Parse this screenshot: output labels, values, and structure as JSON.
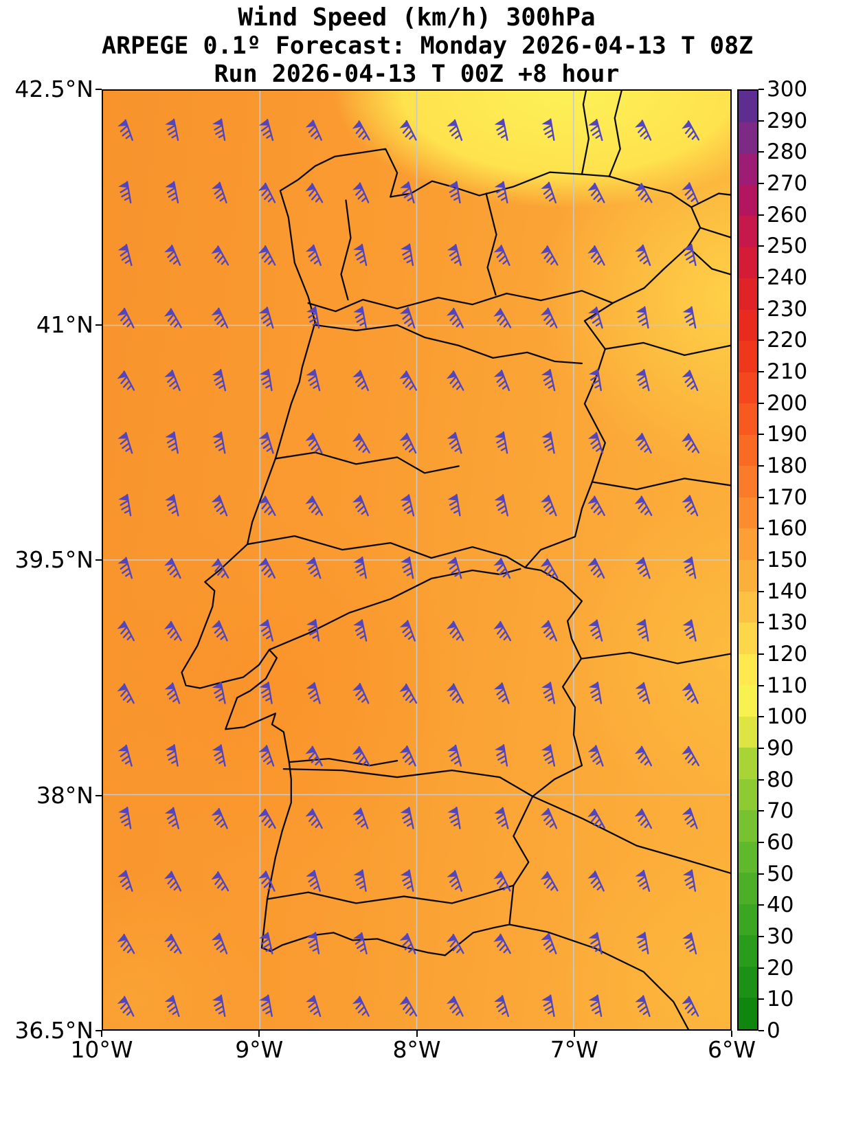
{
  "figure": {
    "title": "Wind Speed (km/h) 300hPa",
    "subtitle": "ARPEGE 0.1º Forecast: Monday 2026-04-13 T 08Z",
    "run_line": "Run 2026-04-13 T 00Z +8 hour"
  },
  "chart_data": {
    "type": "heatmap",
    "variable": "Wind Speed",
    "units": "km/h",
    "pressure_level": "300hPa",
    "model": "ARPEGE 0.1º",
    "valid": "Monday 2026-04-13 T 08Z",
    "run": "2026-04-13 T 00Z",
    "lead": "+8 hour",
    "region": "Portugal and western Iberia",
    "x_axis": {
      "range_lon": [
        -10,
        -6
      ],
      "ticks": [
        {
          "label": "10°W",
          "lon": -10
        },
        {
          "label": "9°W",
          "lon": -9
        },
        {
          "label": "8°W",
          "lon": -8
        },
        {
          "label": "7°W",
          "lon": -7
        },
        {
          "label": "6°W",
          "lon": -6
        }
      ]
    },
    "y_axis": {
      "range_lat": [
        42.5,
        36.5
      ],
      "ticks": [
        {
          "label": "42.5°N",
          "lat": 42.5
        },
        {
          "label": "41°N",
          "lat": 41
        },
        {
          "label": "39.5°N",
          "lat": 39.5
        },
        {
          "label": "38°N",
          "lat": 38
        },
        {
          "label": "36.5°N",
          "lat": 36.5
        }
      ]
    },
    "grid": {
      "shown": true,
      "color": "#c9c9c9",
      "lon_lines": [
        -9,
        -8,
        -7
      ],
      "lat_lines": [
        41,
        39.5,
        38
      ]
    },
    "colorbar": {
      "min": 0,
      "max": 300,
      "tick_step": 10,
      "units": "km/h",
      "tick_labels_bottom_up": [
        "0",
        "10",
        "20",
        "30",
        "40",
        "50",
        "60",
        "70",
        "80",
        "90",
        "100",
        "110",
        "120",
        "130",
        "140",
        "150",
        "160",
        "170",
        "180",
        "190",
        "200",
        "210",
        "220",
        "230",
        "240",
        "250",
        "260",
        "270",
        "280",
        "290",
        "300"
      ],
      "segment_colors_bottom_up": [
        "#0f870f",
        "#1b9215",
        "#2a9c1c",
        "#3aa622",
        "#4caf27",
        "#60b92c",
        "#76c230",
        "#8eca32",
        "#a8d436",
        "#dce542",
        "#f7f24d",
        "#ffe94f",
        "#fed64a",
        "#fdc243",
        "#fcb03c",
        "#fc9f35",
        "#fb8d2f",
        "#fa7c2a",
        "#f96a25",
        "#f75921",
        "#f4471e",
        "#ef371c",
        "#e92a1e",
        "#e02326",
        "#d41c37",
        "#c6184b",
        "#b3165f",
        "#9c1d73",
        "#7c2a86",
        "#5e2d91"
      ]
    },
    "field_estimate_kmh": {
      "west_atlantic": 145,
      "northwest_coast": 140,
      "northeast_interior": 115,
      "center": 140,
      "south": 138,
      "east_interior": 125,
      "min_visible": 110,
      "max_visible": 155
    },
    "wind_barbs": {
      "color": "#5245bd",
      "approx_speed_kt": "70-80",
      "grid": {
        "lon_start": -9.82,
        "lon_step": 0.3,
        "cols": 13,
        "lat_start": 42.25,
        "lat_step": 0.4,
        "rows": 15
      }
    }
  }
}
